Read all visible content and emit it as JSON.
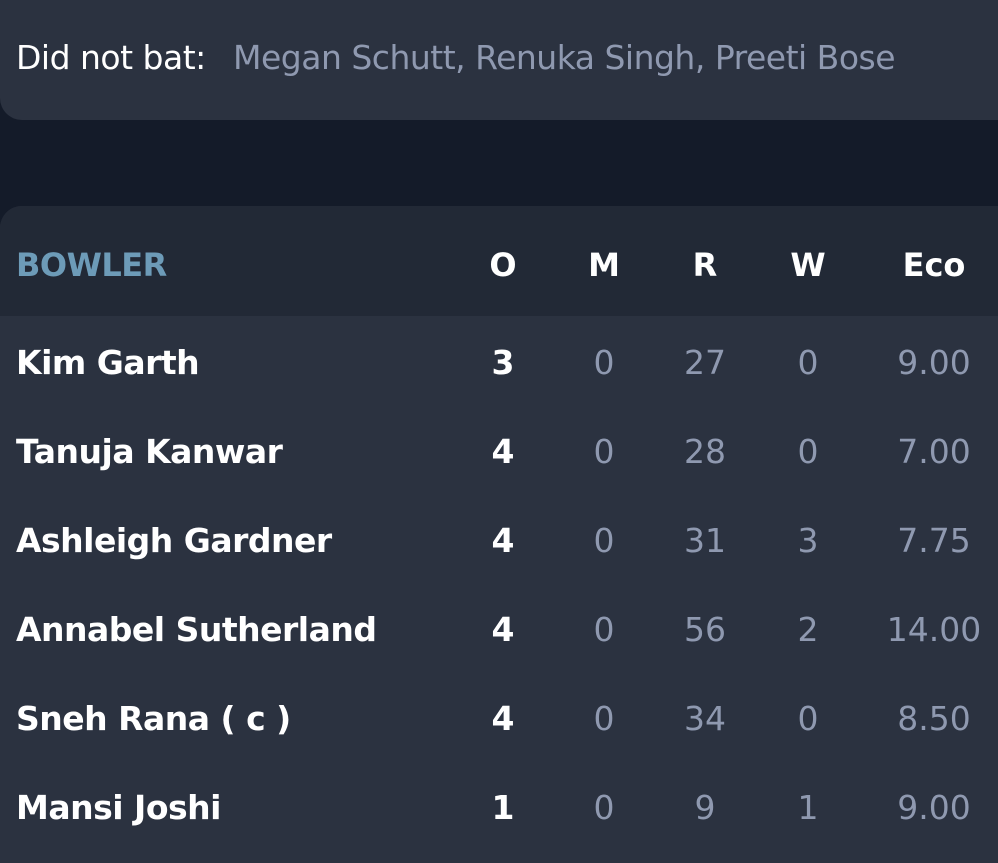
{
  "did_not_bat": {
    "label": "Did not bat:",
    "players": "Megan Schutt, Renuka Singh, Preeti Bose"
  },
  "bowling": {
    "headers": {
      "bowler": "BOWLER",
      "overs": "O",
      "maidens": "M",
      "runs": "R",
      "wickets": "W",
      "economy": "Eco"
    },
    "rows": [
      {
        "name": "Kim Garth",
        "o": "3",
        "m": "0",
        "r": "27",
        "w": "0",
        "eco": "9.00"
      },
      {
        "name": "Tanuja Kanwar",
        "o": "4",
        "m": "0",
        "r": "28",
        "w": "0",
        "eco": "7.00"
      },
      {
        "name": "Ashleigh Gardner",
        "o": "4",
        "m": "0",
        "r": "31",
        "w": "3",
        "eco": "7.75"
      },
      {
        "name": "Annabel Sutherland",
        "o": "4",
        "m": "0",
        "r": "56",
        "w": "2",
        "eco": "14.00"
      },
      {
        "name": "Sneh Rana  ( c )",
        "o": "4",
        "m": "0",
        "r": "34",
        "w": "0",
        "eco": "8.50"
      },
      {
        "name": "Mansi Joshi",
        "o": "1",
        "m": "0",
        "r": "9",
        "w": "1",
        "eco": "9.00"
      }
    ]
  },
  "colors": {
    "background": "#141b29",
    "card": "#2b3240",
    "header": "#222936",
    "accent_header": "#6d9bb8",
    "muted_text": "#8f99b0",
    "primary_text": "#ffffff"
  }
}
